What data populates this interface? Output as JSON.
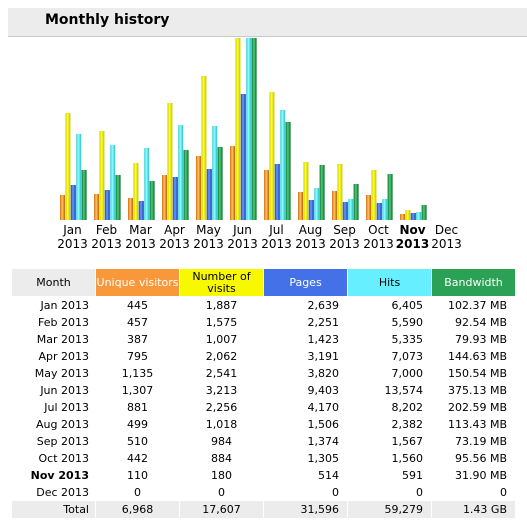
{
  "title": "Monthly history",
  "colors": {
    "visitors": "#f9983b",
    "visits": "#f8f800",
    "pages": "#4470e8",
    "hits": "#66f0ff",
    "bandwidth": "#2aa155",
    "header_bg": "#ececec"
  },
  "table": {
    "headers": {
      "month": "Month",
      "visitors": "Unique visitors",
      "visits": "Number of visits",
      "pages": "Pages",
      "hits": "Hits",
      "bandwidth": "Bandwidth"
    },
    "rows": [
      {
        "month": "Jan 2013",
        "visitors": "445",
        "visits": "1,887",
        "pages": "2,639",
        "hits": "6,405",
        "bandwidth": "102.37 MB"
      },
      {
        "month": "Feb 2013",
        "visitors": "457",
        "visits": "1,575",
        "pages": "2,251",
        "hits": "5,590",
        "bandwidth": "92.54 MB"
      },
      {
        "month": "Mar 2013",
        "visitors": "387",
        "visits": "1,007",
        "pages": "1,423",
        "hits": "5,335",
        "bandwidth": "79.93 MB"
      },
      {
        "month": "Apr 2013",
        "visitors": "795",
        "visits": "2,062",
        "pages": "3,191",
        "hits": "7,073",
        "bandwidth": "144.63 MB"
      },
      {
        "month": "May 2013",
        "visitors": "1,135",
        "visits": "2,541",
        "pages": "3,820",
        "hits": "7,000",
        "bandwidth": "150.54 MB"
      },
      {
        "month": "Jun 2013",
        "visitors": "1,307",
        "visits": "3,213",
        "pages": "9,403",
        "hits": "13,574",
        "bandwidth": "375.13 MB"
      },
      {
        "month": "Jul 2013",
        "visitors": "881",
        "visits": "2,256",
        "pages": "4,170",
        "hits": "8,202",
        "bandwidth": "202.59 MB"
      },
      {
        "month": "Aug 2013",
        "visitors": "499",
        "visits": "1,018",
        "pages": "1,506",
        "hits": "2,382",
        "bandwidth": "113.43 MB"
      },
      {
        "month": "Sep 2013",
        "visitors": "510",
        "visits": "984",
        "pages": "1,374",
        "hits": "1,567",
        "bandwidth": "73.19 MB"
      },
      {
        "month": "Oct 2013",
        "visitors": "442",
        "visits": "884",
        "pages": "1,305",
        "hits": "1,560",
        "bandwidth": "95.56 MB"
      },
      {
        "month": "Nov 2013",
        "visitors": "110",
        "visits": "180",
        "pages": "514",
        "hits": "591",
        "bandwidth": "31.90 MB"
      },
      {
        "month": "Dec 2013",
        "visitors": "0",
        "visits": "0",
        "pages": "0",
        "hits": "0",
        "bandwidth": "0"
      }
    ],
    "total": {
      "month": "Total",
      "visitors": "6,968",
      "visits": "17,607",
      "pages": "31,596",
      "hits": "59,279",
      "bandwidth": "1.43 GB"
    }
  },
  "chart_data": {
    "type": "bar",
    "categories": [
      [
        "Jan",
        "2013"
      ],
      [
        "Feb",
        "2013"
      ],
      [
        "Mar",
        "2013"
      ],
      [
        "Apr",
        "2013"
      ],
      [
        "May",
        "2013"
      ],
      [
        "Jun",
        "2013"
      ],
      [
        "Jul",
        "2013"
      ],
      [
        "Aug",
        "2013"
      ],
      [
        "Sep",
        "2013"
      ],
      [
        "Oct",
        "2013"
      ],
      [
        "Nov",
        "2013"
      ],
      [
        "Dec",
        "2013"
      ]
    ],
    "current_index": 10,
    "series": [
      {
        "key": "visitors",
        "values": [
          445,
          457,
          387,
          795,
          1135,
          1307,
          881,
          499,
          510,
          442,
          110,
          0
        ]
      },
      {
        "key": "visits",
        "values": [
          1887,
          1575,
          1007,
          2062,
          2541,
          3213,
          2256,
          1018,
          984,
          884,
          180,
          0
        ]
      },
      {
        "key": "pages",
        "values": [
          2639,
          2251,
          1423,
          3191,
          3820,
          9403,
          4170,
          1506,
          1374,
          1305,
          514,
          0
        ]
      },
      {
        "key": "hits",
        "values": [
          6405,
          5590,
          5335,
          7073,
          7000,
          13574,
          8202,
          2382,
          1567,
          1560,
          591,
          0
        ]
      },
      {
        "key": "bandwidth",
        "values": [
          102.37,
          92.54,
          79.93,
          144.63,
          150.54,
          375.13,
          202.59,
          113.43,
          73.19,
          95.56,
          31.9,
          0
        ]
      }
    ],
    "scale_groups": [
      [
        "visitors",
        "visits"
      ],
      [
        "pages",
        "hits"
      ],
      [
        "bandwidth"
      ]
    ]
  }
}
